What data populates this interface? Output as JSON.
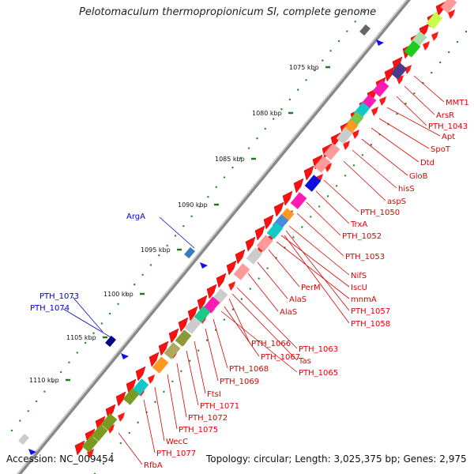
{
  "title": "Pelotomaculum thermopropionicum SI, complete genome",
  "footer": {
    "accession": "Accession: NC_009454",
    "topology": "Topology: circular; Length: 3,025,375 bp; Genes: 2,975"
  },
  "colors": {
    "forward_label": "#0000cc",
    "reverse_label": "#e00000",
    "backbone": "#999999",
    "tick_dot": "#228b22"
  },
  "scale_ticks": [
    "1075 kbp",
    "1080 kbp",
    "1085 kbp",
    "1090 kbp",
    "1095 kbp",
    "1100 kbp",
    "1105 kbp",
    "1110 kbp"
  ],
  "forward_genes": [
    "ArgA",
    "PTH_1073",
    "PTH_1074"
  ],
  "reverse_genes": [
    "MMT1",
    "ArsR",
    "PTH_1043",
    "Apt",
    "SpoT",
    "Dtd",
    "GloB",
    "hisS",
    "aspS",
    "PTH_1050",
    "TrxA",
    "PTH_1052",
    "PTH_1053",
    "NifS",
    "IscU",
    "PerM",
    "mnmA",
    "AlaS",
    "AlaS",
    "PTH_1057",
    "PTH_1058",
    "PTH_1063",
    "PTH_1066",
    "Tas",
    "PTH_1067",
    "PTH_1065",
    "PTH_1068",
    "PTH_1069",
    "FtsI",
    "PTH_1071",
    "PTH_1072",
    "PTH_1075",
    "WecC",
    "PTH_1077",
    "RfbA"
  ]
}
